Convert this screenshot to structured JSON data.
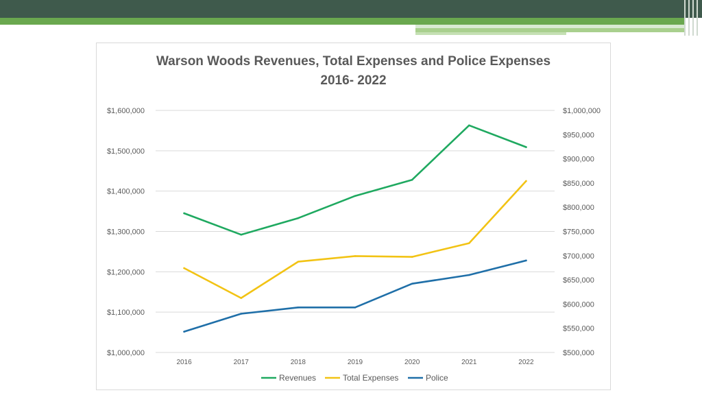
{
  "colors": {
    "header": "#3f5a4c",
    "accent_green": "#6aa84f",
    "revenues": "#1fa960",
    "total_expenses": "#f2c314",
    "police": "#1f6fa8",
    "grid": "#d9d9d9",
    "text": "#595959"
  },
  "chart_data": {
    "type": "line",
    "title": "Warson Woods Revenues, Total Expenses and Police Expenses",
    "subtitle": "2016- 2022",
    "categories": [
      "2016",
      "2017",
      "2018",
      "2019",
      "2020",
      "2021",
      "2022"
    ],
    "y_left": {
      "ylim": [
        1000000,
        1600000
      ],
      "ticks": [
        1000000,
        1100000,
        1200000,
        1300000,
        1400000,
        1500000,
        1600000
      ],
      "tick_labels": [
        "$1,000,000",
        "$1,100,000",
        "$1,200,000",
        "$1,300,000",
        "$1,400,000",
        "$1,500,000",
        "$1,600,000"
      ]
    },
    "y_right": {
      "ylim": [
        500000,
        1000000
      ],
      "ticks": [
        500000,
        550000,
        600000,
        650000,
        700000,
        750000,
        800000,
        850000,
        900000,
        950000,
        1000000
      ],
      "tick_labels": [
        "$500,000",
        "$550,000",
        "$600,000",
        "$650,000",
        "$700,000",
        "$750,000",
        "$800,000",
        "$850,000",
        "$900,000",
        "$950,000",
        "$1,000,000"
      ]
    },
    "grid": true,
    "legend_position": "bottom",
    "series": [
      {
        "name": "Revenues",
        "axis": "left",
        "color": "#1fa960",
        "values": [
          1345000,
          1292000,
          1333000,
          1388000,
          1428000,
          1563000,
          1509000
        ]
      },
      {
        "name": "Total Expenses",
        "axis": "left",
        "color": "#f2c314",
        "values": [
          1209000,
          1135000,
          1225000,
          1239000,
          1237000,
          1271000,
          1425000
        ]
      },
      {
        "name": "Police",
        "axis": "right",
        "color": "#1f6fa8",
        "values": [
          543000,
          580000,
          593000,
          593000,
          642000,
          660000,
          690000
        ]
      }
    ]
  }
}
